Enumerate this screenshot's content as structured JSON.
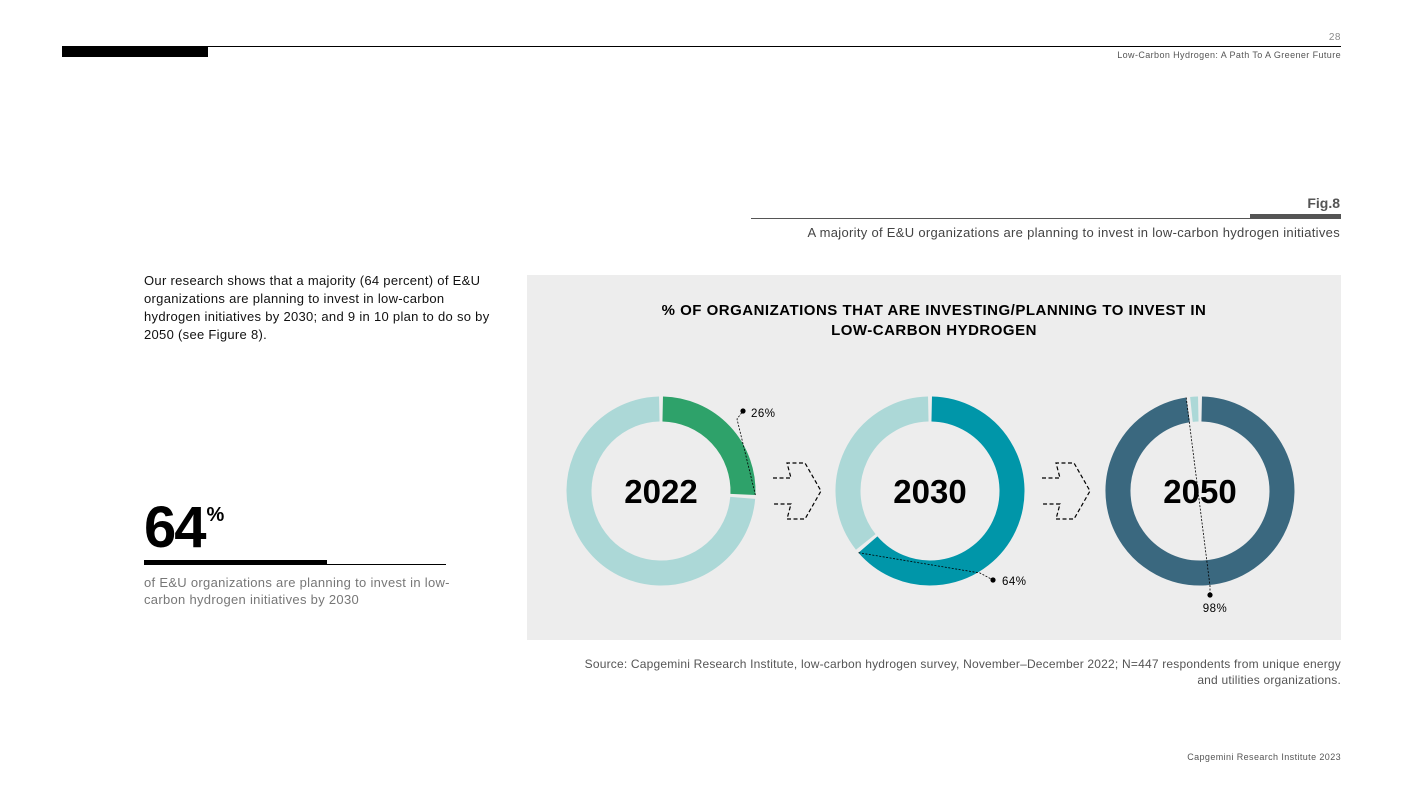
{
  "header": {
    "page_number": "28",
    "document_title": "Low-Carbon Hydrogen: A Path To A Greener Future"
  },
  "figure": {
    "label": "Fig.8",
    "caption": "A majority of E&U organizations are planning to invest in low-carbon hydrogen initiatives"
  },
  "intro_text": "Our research shows that a majority (64 percent) of E&U organizations are planning to invest in low-carbon hydrogen initiatives by 2030; and 9 in 10 plan to do so by 2050 (see Figure 8).",
  "highlight": {
    "value": "64",
    "unit": "%",
    "description": "of E&U organizations are planning to invest in low-carbon hydrogen initiatives by 2030"
  },
  "chart_data": {
    "type": "pie",
    "variant": "donut",
    "title_lines": [
      "% OF ORGANIZATIONS THAT ARE INVESTING/PLANNING TO INVEST IN",
      "LOW-CARBON HYDROGEN"
    ],
    "categories": [
      "2022",
      "2030",
      "2050"
    ],
    "values": [
      26,
      64,
      98
    ],
    "value_labels": [
      "26%",
      "64%",
      "98%"
    ],
    "colors": [
      "#2ea26a",
      "#0096a9",
      "#3a687f"
    ],
    "remainder_color": "#acd8d7"
  },
  "source_text": "Source: Capgemini Research Institute, low-carbon hydrogen survey, November–December 2022; N=447 respondents from unique energy and utilities organizations.",
  "footer_text": "Capgemini Research Institute 2023"
}
